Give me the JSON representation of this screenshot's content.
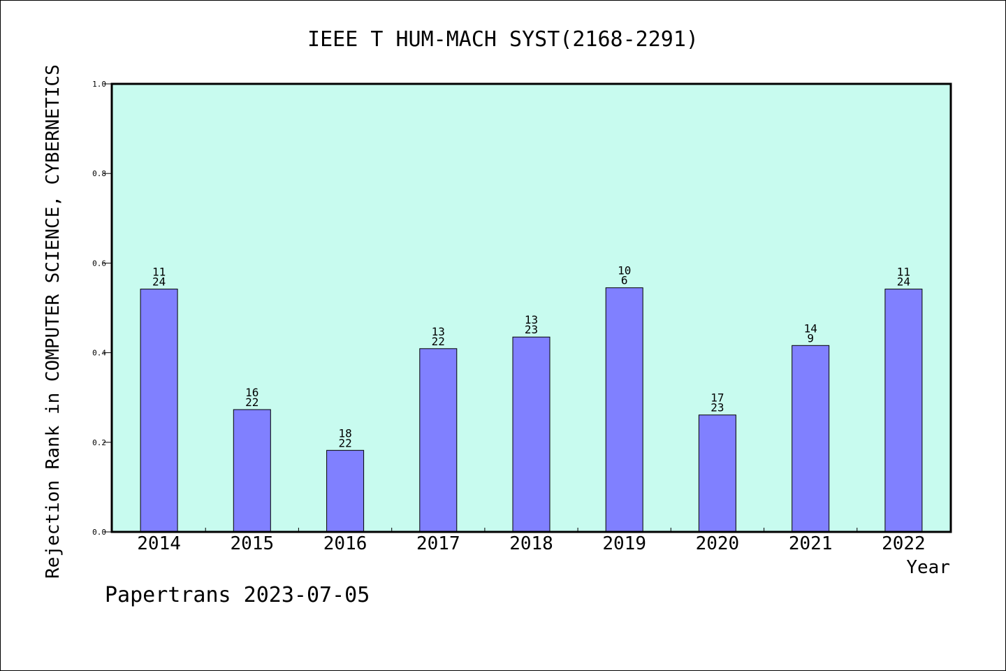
{
  "footer": {
    "text": "Papertrans 2023-07-05"
  },
  "colors": {
    "plot_background": "#c8fbef",
    "bar_fill": "#8080ff",
    "bar_stroke": "#000000",
    "axis": "#000000"
  },
  "chart_data": {
    "type": "bar",
    "title": "IEEE T HUM-MACH SYST(2168-2291)",
    "xlabel": "Year",
    "ylabel": "Rejection Rank in COMPUTER SCIENCE, CYBERNETICS",
    "categories": [
      "2014",
      "2015",
      "2016",
      "2017",
      "2018",
      "2019",
      "2020",
      "2021",
      "2022"
    ],
    "values": [
      0.542,
      0.273,
      0.182,
      0.409,
      0.435,
      0.545,
      0.261,
      0.416,
      0.542
    ],
    "label_top": [
      "11",
      "16",
      "18",
      "13",
      "13",
      "10",
      "17",
      "14",
      "11"
    ],
    "label_bottom": [
      "24",
      "22",
      "22",
      "22",
      "23",
      "6",
      "23",
      "9",
      "24"
    ],
    "ylim": [
      0,
      1.0
    ],
    "yticks": [
      "0.0",
      "0.2",
      "0.4",
      "0.6",
      "0.8",
      "1.0"
    ],
    "grid": false,
    "legend": "none"
  }
}
